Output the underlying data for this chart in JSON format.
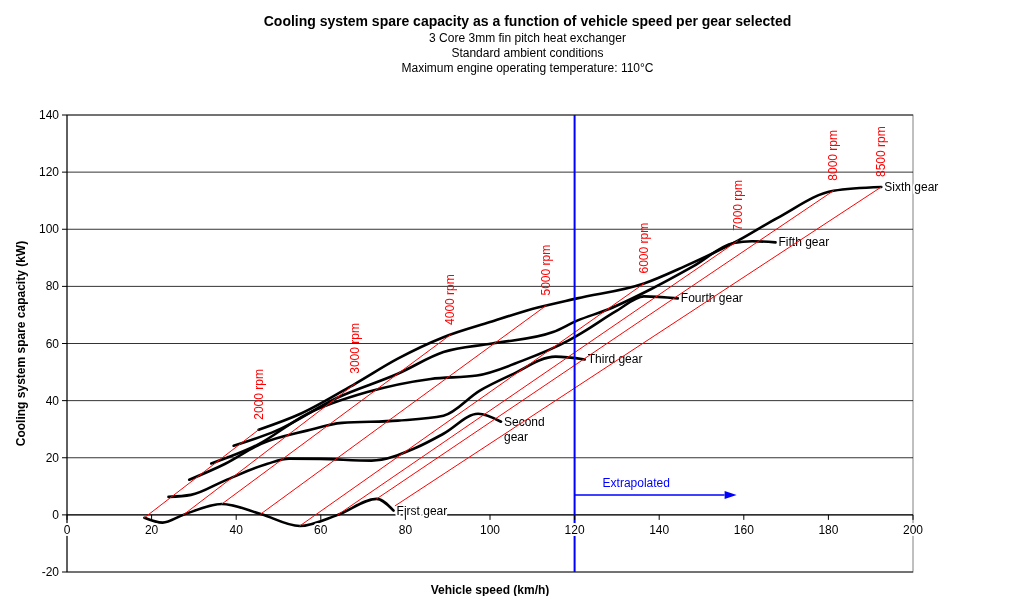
{
  "chart_data": {
    "type": "line",
    "title": "Cooling system spare capacity as a function of vehicle speed per gear selected",
    "subtitle": "3 Core 3mm fin pitch heat exchanger\nStandard ambient conditions\nMaximum engine operating temperature: 110°C",
    "xlabel": "Vehicle speed (km/h)",
    "ylabel": "Cooling system spare capacity (kW)",
    "xlim": [
      0,
      200
    ],
    "xticks": [
      0,
      20,
      40,
      60,
      80,
      100,
      120,
      140,
      160,
      180,
      200
    ],
    "ylim": [
      -20,
      140
    ],
    "yticks": [
      -20,
      0,
      20,
      40,
      60,
      80,
      100,
      120,
      140
    ],
    "grid": "y",
    "legend": false,
    "marker": "none",
    "line_style": "solid",
    "ref_lines": [
      {
        "axis": "x",
        "value": 120,
        "color": "#0000ff"
      }
    ],
    "annotations": [
      {
        "text": "Extrapolated",
        "x": 120,
        "y": 7
      }
    ],
    "series": [
      {
        "name": "First gear",
        "color": "#000000",
        "x": [
          18.3,
          22.6,
          27.5,
          36.6,
          45.8,
          55,
          64,
          73.2,
          77.2
        ],
        "values": [
          -1,
          -2.7,
          0,
          3.8,
          0.3,
          -3.9,
          0,
          5.6,
          1.5
        ]
      },
      {
        "name": "Second gear",
        "color": "#000000",
        "x": [
          24,
          29.3,
          37.3,
          47.4,
          52.5,
          60,
          72,
          82.5,
          89,
          97.2,
          102.6
        ],
        "values": [
          6.3,
          7,
          12,
          17.9,
          19.7,
          19.6,
          19,
          23.5,
          28.4,
          35.4,
          32.6
        ]
      },
      {
        "name": "Third gear",
        "color": "#000000",
        "x": [
          28.9,
          37.3,
          45.9,
          56.7,
          65,
          78.2,
          89,
          97.6,
          105,
          115.5,
          122.4
        ],
        "values": [
          12.3,
          17.8,
          24.9,
          29.5,
          32.2,
          33,
          34.7,
          43.5,
          49,
          55.4,
          54.4
        ]
      },
      {
        "name": "Fourth gear",
        "color": "#000000",
        "x": [
          34.1,
          45,
          56.7,
          71,
          86,
          96.9,
          107.7,
          118.5,
          122,
          130,
          136.4,
          144.4
        ],
        "values": [
          18,
          24.5,
          35.3,
          43,
          47.6,
          48.8,
          54,
          61,
          64,
          71.5,
          76.5,
          75.8
        ]
      },
      {
        "name": "Fifth gear",
        "color": "#000000",
        "x": [
          39.4,
          49.5,
          63.9,
          78.2,
          89,
          100.5,
          114.9,
          120.6,
          128,
          138,
          148,
          157.6,
          162,
          167.5
        ],
        "values": [
          24.2,
          29.5,
          41,
          49.4,
          57,
          60,
          64,
          68,
          72,
          79,
          87,
          95.2,
          95.8,
          95.4
        ]
      },
      {
        "name": "Sixth gear",
        "color": "#000000",
        "x": [
          45.3,
          55.2,
          68.1,
          78.2,
          89,
          100,
          111.3,
          120.6,
          136.4,
          146,
          158.6,
          168,
          181.2,
          192.5
        ],
        "values": [
          29.8,
          35.4,
          45.9,
          54.7,
          62.2,
          67.5,
          72.6,
          75.8,
          81,
          87,
          96,
          104,
          113.5,
          114.8
        ]
      },
      {
        "name": "2000 rpm",
        "color": "#ff0000",
        "x": [
          18.3,
          45.3
        ],
        "values": [
          -1,
          29.8
        ]
      },
      {
        "name": "3000 rpm",
        "color": "#ff0000",
        "x": [
          27.5,
          68.1
        ],
        "values": [
          0,
          45.9
        ]
      },
      {
        "name": "4000 rpm",
        "color": "#ff0000",
        "x": [
          36.6,
          90.6
        ],
        "values": [
          3.8,
          63
        ]
      },
      {
        "name": "5000 rpm",
        "color": "#ff0000",
        "x": [
          45.8,
          113.3
        ],
        "values": [
          0.3,
          73.3
        ]
      },
      {
        "name": "6000 rpm",
        "color": "#ff0000",
        "x": [
          55,
          136.4
        ],
        "values": [
          -3.9,
          81
        ]
      },
      {
        "name": "7000 rpm",
        "color": "#ff0000",
        "x": [
          64,
          158.6
        ],
        "values": [
          0,
          96
        ]
      },
      {
        "name": "8000 rpm",
        "color": "#ff0000",
        "x": [
          73.2,
          181.2
        ],
        "values": [
          5.6,
          113.5
        ]
      },
      {
        "name": "8500 rpm",
        "color": "#ff0000",
        "x": [
          77.6,
          192.5
        ],
        "values": [
          3.2,
          114.8
        ]
      }
    ]
  }
}
